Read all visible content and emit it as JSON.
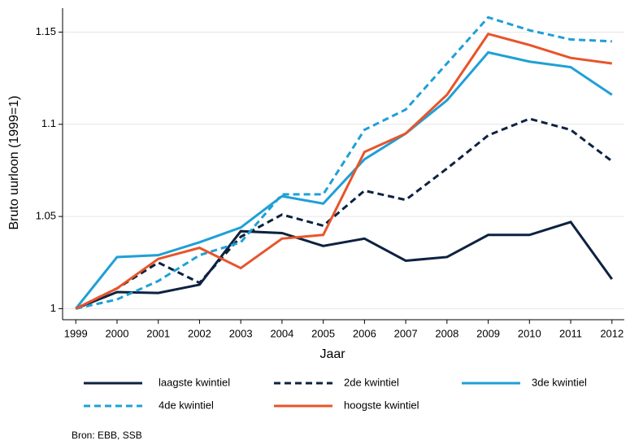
{
  "chart_data": {
    "type": "line",
    "x_label": "Jaar",
    "y_label": "Bruto uurloon (1999=1)",
    "source": "Bron: EBB, SSB",
    "x": [
      1999,
      2000,
      2001,
      2002,
      2003,
      2004,
      2005,
      2006,
      2007,
      2008,
      2009,
      2010,
      2011,
      2012
    ],
    "xlim": [
      1998.68,
      2012.3
    ],
    "xticks": [
      1999,
      2000,
      2001,
      2002,
      2003,
      2004,
      2005,
      2006,
      2007,
      2008,
      2009,
      2010,
      2011,
      2012
    ],
    "ylim": [
      0.994,
      1.163
    ],
    "yticks": [
      1,
      1.05,
      1.1,
      1.15
    ],
    "grid": true,
    "series": [
      {
        "name": "laagste kwintiel",
        "color": "#0d2240",
        "dashed": false,
        "values": [
          1,
          1.009,
          1.0085,
          1.013,
          1.042,
          1.041,
          1.034,
          1.038,
          1.026,
          1.028,
          1.04,
          1.04,
          1.047,
          1.016
        ]
      },
      {
        "name": "2de kwintiel",
        "color": "#0d2240",
        "dashed": true,
        "values": [
          1,
          1.011,
          1.025,
          1.014,
          1.039,
          1.051,
          1.045,
          1.064,
          1.059,
          1.076,
          1.094,
          1.103,
          1.097,
          1.08
        ]
      },
      {
        "name": "3de kwintiel",
        "color": "#1fa0d6",
        "dashed": false,
        "values": [
          1,
          1.028,
          1.029,
          1.036,
          1.044,
          1.061,
          1.057,
          1.081,
          1.095,
          1.113,
          1.139,
          1.134,
          1.131,
          1.116
        ]
      },
      {
        "name": "4de kwintiel",
        "color": "#1fa0d6",
        "dashed": true,
        "values": [
          1,
          1.005,
          1.015,
          1.029,
          1.036,
          1.062,
          1.062,
          1.097,
          1.108,
          1.133,
          1.158,
          1.151,
          1.146,
          1.145
        ]
      },
      {
        "name": "hoogste kwintiel",
        "color": "#e8542a",
        "dashed": false,
        "values": [
          1,
          1.011,
          1.027,
          1.033,
          1.022,
          1.038,
          1.04,
          1.085,
          1.095,
          1.116,
          1.149,
          1.143,
          1.136,
          1.133
        ]
      }
    ]
  }
}
